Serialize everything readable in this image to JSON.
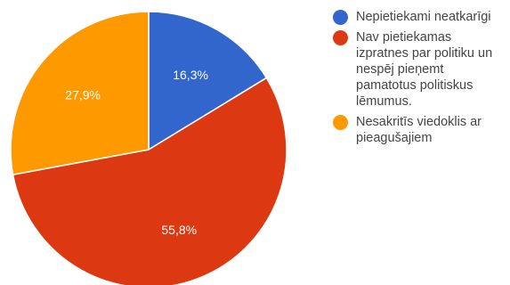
{
  "chart_data": {
    "type": "pie",
    "categories": [
      "Nepietiekami neatkarīgi",
      "Nav pietiekamas izpratnes par politiku un nespēj pieņemt pamatotus politiskus lēmumus.",
      "Nesakritīs viedoklis ar pieagušajiem"
    ],
    "values": [
      16.3,
      55.8,
      27.9
    ],
    "value_labels": [
      "16,3%",
      "55,8%",
      "27,9%"
    ],
    "colors": [
      "#3366cc",
      "#dc3912",
      "#ff9900"
    ],
    "start_angle_deg": 90,
    "direction": "clockwise",
    "legend_placement": "right"
  }
}
